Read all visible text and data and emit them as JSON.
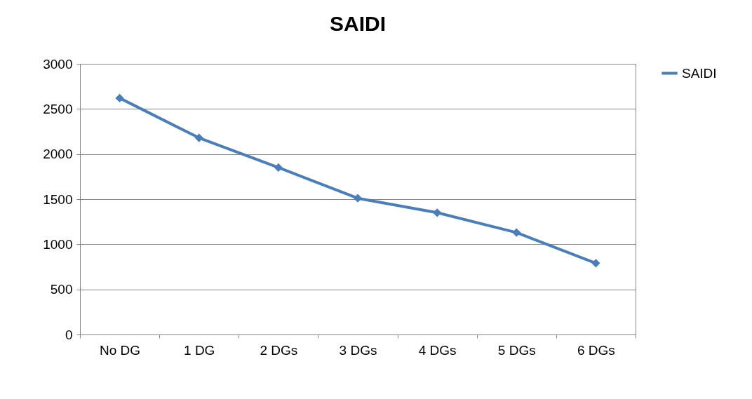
{
  "chart_data": {
    "type": "line",
    "title": "SAIDI",
    "categories": [
      "No DG",
      "1 DG",
      "2 DGs",
      "3 DGs",
      "4 DGs",
      "5 DGs",
      "6 DGs"
    ],
    "series": [
      {
        "name": "SAIDI",
        "color": "#4a7ebb",
        "values": [
          2620,
          2180,
          1850,
          1510,
          1350,
          1130,
          790
        ]
      }
    ],
    "ylim": [
      0,
      3000
    ],
    "yticks": [
      0,
      500,
      1000,
      1500,
      2000,
      2500,
      3000
    ],
    "grid": "y",
    "legend": "right",
    "marker": "diamond",
    "line_style": "solid"
  }
}
